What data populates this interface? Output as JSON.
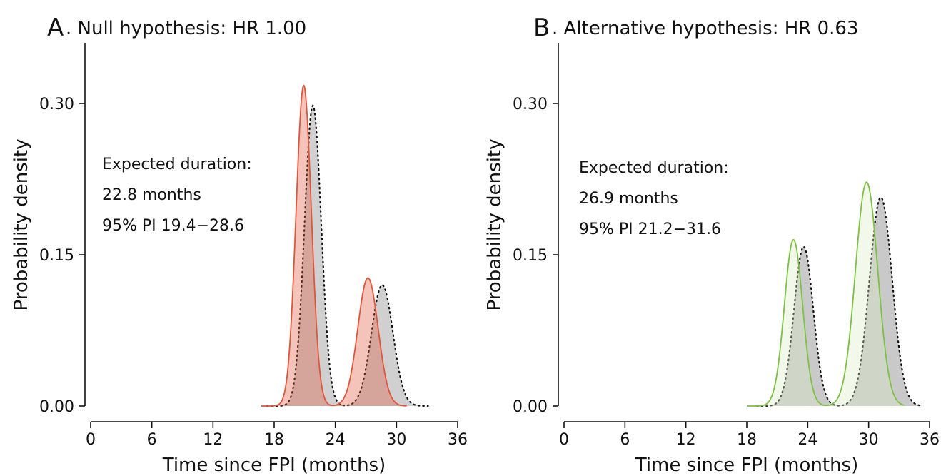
{
  "chart_data": [
    {
      "type": "area",
      "panel_label": "A",
      "title": ". Null hypothesis: HR 1.00",
      "xlabel": "Time since FPI (months)",
      "ylabel": "Probability density",
      "xlim": [
        0,
        36
      ],
      "ylim": [
        0,
        0.3
      ],
      "xticks": [
        "0",
        "6",
        "12",
        "18",
        "24",
        "30",
        "36"
      ],
      "yticks": [
        "0.00",
        "0.15",
        "0.30"
      ],
      "annotation": [
        "Expected duration:",
        "22.8 months",
        "95% PI 19.4−28.6"
      ],
      "series": [
        {
          "color": "#e0553a",
          "fill": "#e0553a",
          "line_style": "solid",
          "peaks": [
            {
              "mean": 20.9,
              "sd": 0.75,
              "height": 0.318
            },
            {
              "mean": 27.2,
              "sd": 1.0,
              "height": 0.127
            }
          ],
          "range": [
            16.7,
            31.0
          ]
        },
        {
          "color": "#111111",
          "fill": "#b3b3b3",
          "line_style": "dotted",
          "peaks": [
            {
              "mean": 21.8,
              "sd": 0.82,
              "height": 0.298
            },
            {
              "mean": 28.6,
              "sd": 1.05,
              "height": 0.12
            }
          ],
          "range": [
            17.3,
            33.1
          ]
        }
      ]
    },
    {
      "type": "area",
      "panel_label": "B",
      "title": ". Alternative hypothesis: HR 0.63",
      "xlabel": "Time since FPI (months)",
      "ylabel": "Probability density",
      "xlim": [
        0,
        36
      ],
      "ylim": [
        0,
        0.3
      ],
      "xticks": [
        "0",
        "6",
        "12",
        "18",
        "24",
        "30",
        "36"
      ],
      "yticks": [
        "0.00",
        "0.15",
        "0.30"
      ],
      "annotation": [
        "Expected duration:",
        "26.9 months",
        "95% PI 21.2−31.6"
      ],
      "series": [
        {
          "color": "#7cc142",
          "fill": "#dcedc4",
          "line_style": "solid",
          "peaks": [
            {
              "mean": 22.6,
              "sd": 0.9,
              "height": 0.165
            },
            {
              "mean": 29.8,
              "sd": 1.1,
              "height": 0.222
            }
          ],
          "range": [
            18.0,
            33.5
          ]
        },
        {
          "color": "#111111",
          "fill": "#a8a8a8",
          "line_style": "dotted",
          "peaks": [
            {
              "mean": 23.6,
              "sd": 0.95,
              "height": 0.158
            },
            {
              "mean": 31.2,
              "sd": 1.12,
              "height": 0.207
            }
          ],
          "range": [
            19.0,
            35.3
          ]
        }
      ]
    }
  ]
}
